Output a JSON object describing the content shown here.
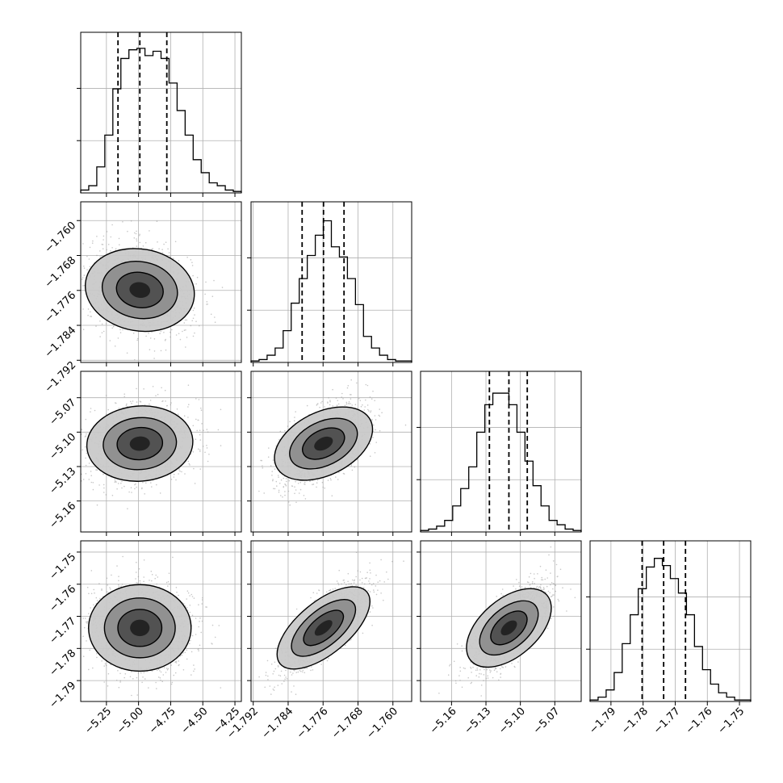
{
  "chart_data": {
    "type": "corner",
    "grid": true,
    "variables": [
      {
        "ticks": [
          "−5.25",
          "−5.00",
          "−4.75",
          "−4.50",
          "−4.25"
        ],
        "tick_values": [
          -5.25,
          -5.0,
          -4.75,
          -4.5,
          -4.25
        ],
        "range": [
          -5.45,
          -4.2
        ],
        "quantiles": [
          -5.16,
          -4.99,
          -4.78
        ]
      },
      {
        "ticks": [
          "−1.792",
          "−1.784",
          "−1.776",
          "−1.768",
          "−1.760"
        ],
        "tick_values": [
          -1.792,
          -1.784,
          -1.776,
          -1.768,
          -1.76
        ],
        "range": [
          -1.7925,
          -1.7557
        ],
        "quantiles": [
          -1.7808,
          -1.7759,
          -1.7712
        ]
      },
      {
        "ticks": [
          "−5.16",
          "−5.13",
          "−5.10",
          "−5.07"
        ],
        "tick_values": [
          -5.16,
          -5.13,
          -5.1,
          -5.07
        ],
        "range": [
          -5.187,
          -5.047
        ],
        "quantiles": [
          -5.127,
          -5.11,
          -5.094
        ]
      },
      {
        "ticks": [
          "−1.79",
          "−1.78",
          "−1.77",
          "−1.76",
          "−1.75"
        ],
        "tick_values": [
          -1.79,
          -1.78,
          -1.77,
          -1.76,
          -1.75
        ],
        "range": [
          -1.7965,
          -1.7465
        ],
        "quantiles": [
          -1.7803,
          -1.7736,
          -1.7668
        ]
      }
    ],
    "correlations": [
      [
        1,
        -0.2,
        0.1,
        0.0
      ],
      [
        0,
        1,
        0.55,
        0.8
      ],
      [
        0,
        0,
        1,
        0.75
      ],
      [
        0,
        0,
        0,
        1
      ]
    ],
    "histograms": [
      [
        0.02,
        0.05,
        0.18,
        0.4,
        0.72,
        0.93,
        0.99,
        1.0,
        0.95,
        0.98,
        0.93,
        0.76,
        0.57,
        0.4,
        0.23,
        0.14,
        0.07,
        0.05,
        0.02,
        0.01
      ],
      [
        0.01,
        0.02,
        0.05,
        0.1,
        0.22,
        0.41,
        0.58,
        0.74,
        0.88,
        0.98,
        0.8,
        0.73,
        0.58,
        0.4,
        0.18,
        0.1,
        0.05,
        0.02,
        0.01,
        0.01
      ],
      [
        0.01,
        0.02,
        0.04,
        0.08,
        0.18,
        0.3,
        0.45,
        0.69,
        0.88,
        0.96,
        0.96,
        0.88,
        0.69,
        0.49,
        0.32,
        0.18,
        0.08,
        0.05,
        0.02,
        0.01
      ],
      [
        0.01,
        0.03,
        0.08,
        0.2,
        0.4,
        0.6,
        0.78,
        0.93,
        0.99,
        0.94,
        0.85,
        0.75,
        0.6,
        0.38,
        0.22,
        0.12,
        0.06,
        0.03,
        0.01,
        0.01
      ]
    ]
  }
}
